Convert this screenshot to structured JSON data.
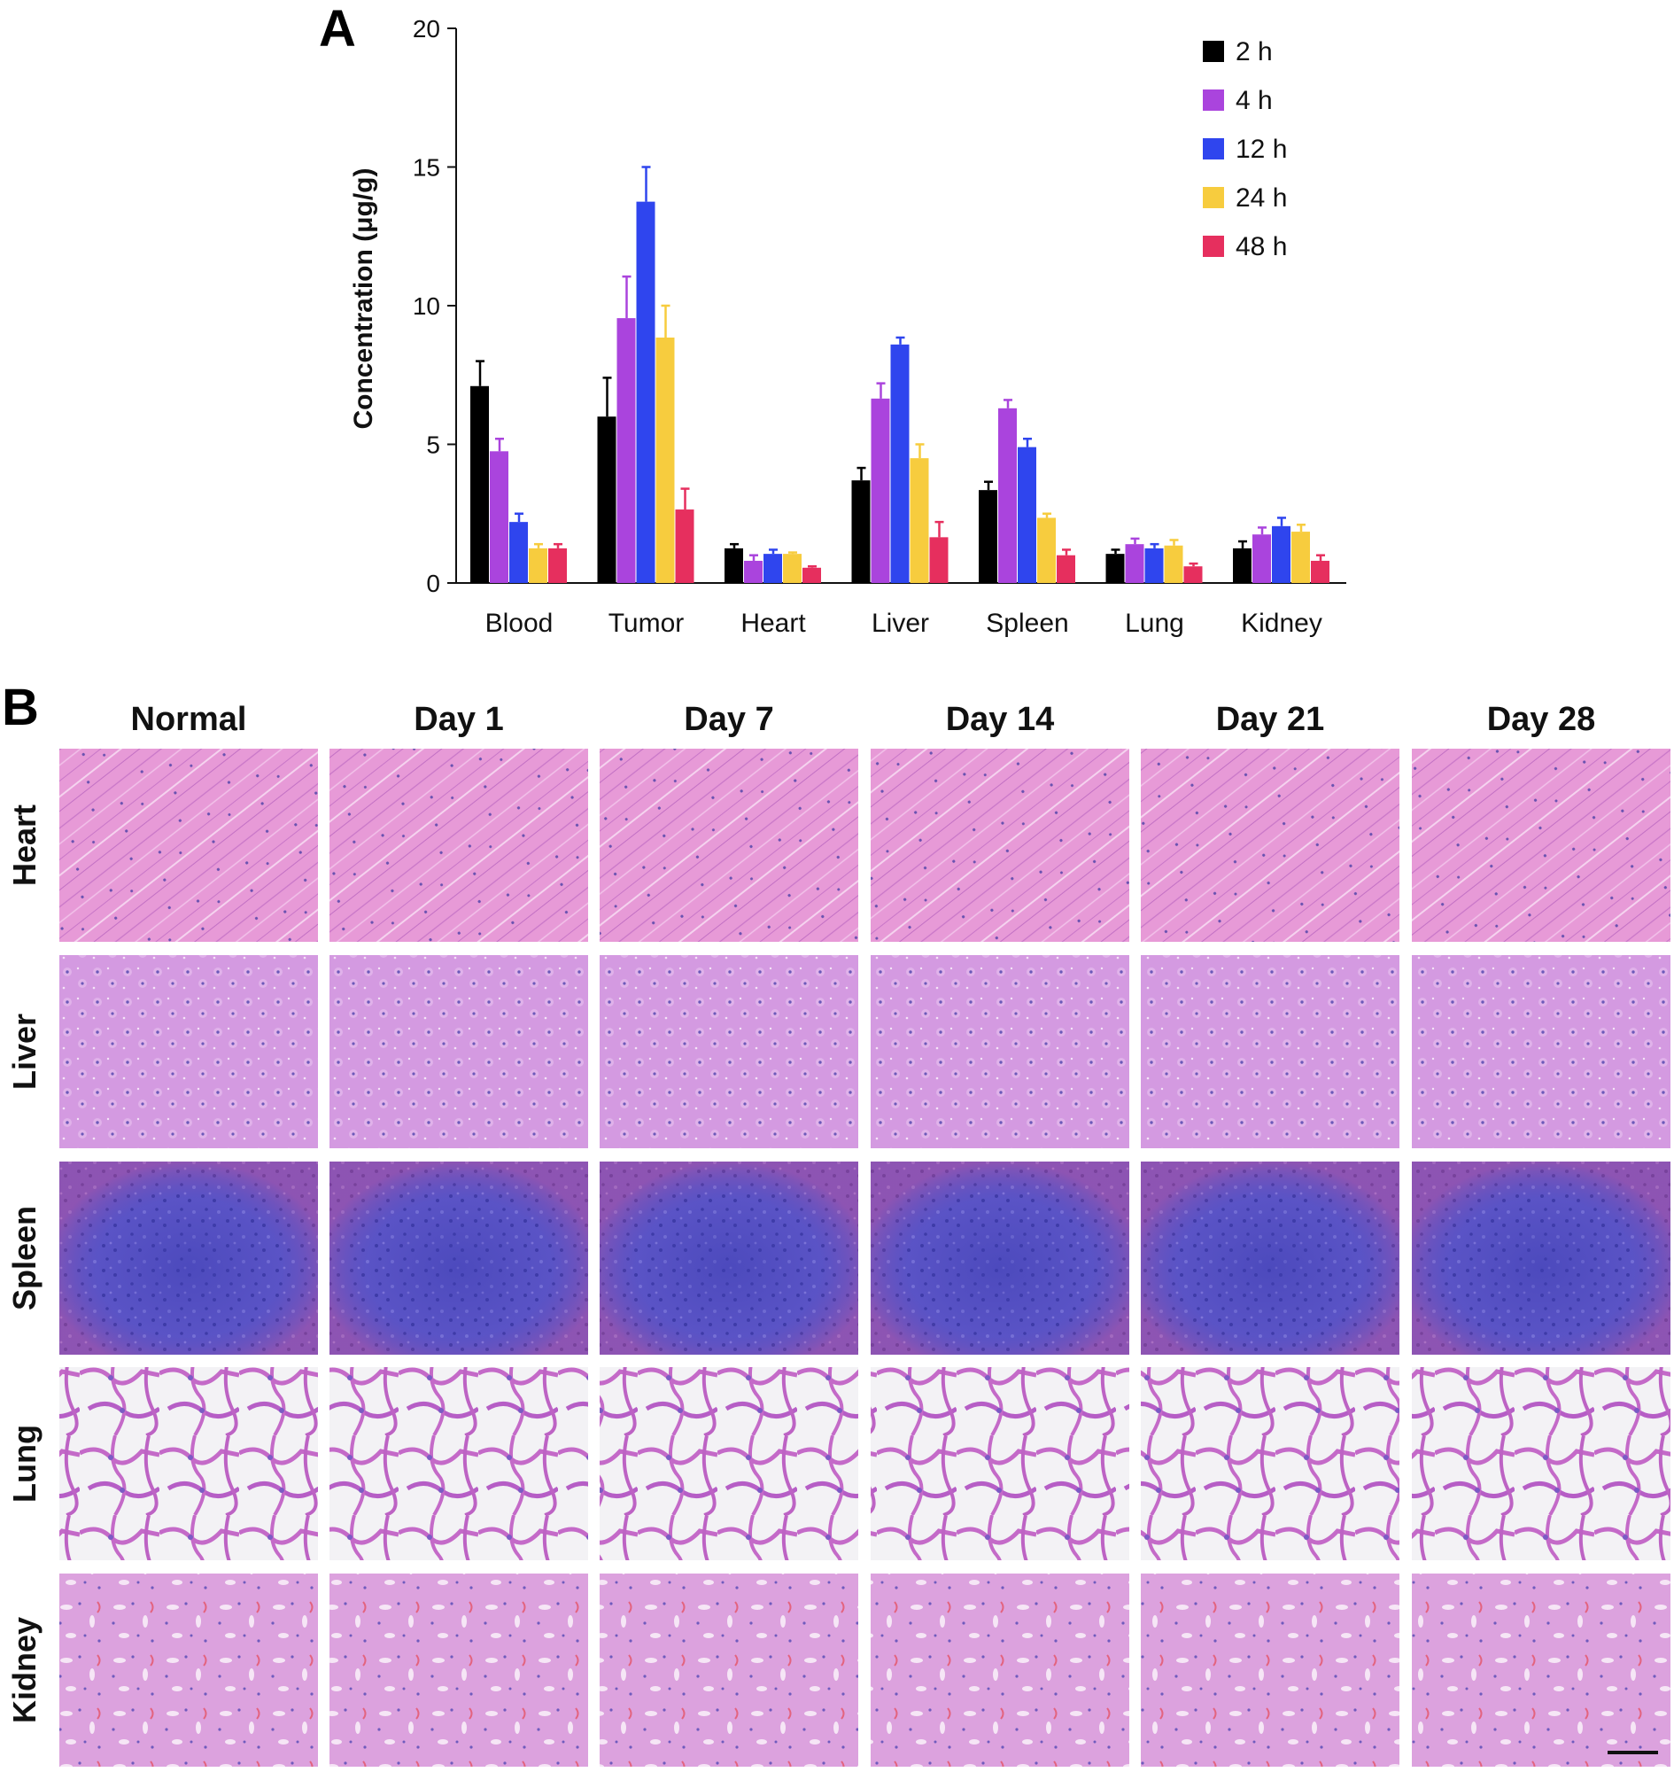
{
  "panel_a_label": "A",
  "panel_b_label": "B",
  "chart_data": {
    "type": "bar",
    "title": "",
    "xlabel": "",
    "ylabel": "Concentration (μg/g)",
    "ylim": [
      0,
      20
    ],
    "yticks": [
      0,
      5,
      10,
      15,
      20
    ],
    "categories": [
      "Blood",
      "Tumor",
      "Heart",
      "Liver",
      "Spleen",
      "Lung",
      "Kidney"
    ],
    "legend_position": "top-right",
    "grid": false,
    "series": [
      {
        "name": "2 h",
        "color": "#000000",
        "values": [
          7.1,
          6.0,
          1.25,
          3.7,
          3.35,
          1.05,
          1.25
        ],
        "errors": [
          0.9,
          1.4,
          0.15,
          0.45,
          0.3,
          0.15,
          0.25
        ]
      },
      {
        "name": "4 h",
        "color": "#aa44dd",
        "values": [
          4.75,
          9.55,
          0.8,
          6.65,
          6.3,
          1.4,
          1.75
        ],
        "errors": [
          0.45,
          1.5,
          0.2,
          0.55,
          0.3,
          0.2,
          0.25
        ]
      },
      {
        "name": "12 h",
        "color": "#2f45ee",
        "values": [
          2.2,
          13.75,
          1.05,
          8.6,
          4.9,
          1.25,
          2.05
        ],
        "errors": [
          0.3,
          1.25,
          0.15,
          0.25,
          0.3,
          0.15,
          0.3
        ]
      },
      {
        "name": "24 h",
        "color": "#f7cc3e",
        "values": [
          1.25,
          8.85,
          1.05,
          4.5,
          2.35,
          1.35,
          1.85
        ],
        "errors": [
          0.15,
          1.15,
          0.05,
          0.5,
          0.15,
          0.2,
          0.25
        ]
      },
      {
        "name": "48 h",
        "color": "#e62f5e",
        "values": [
          1.25,
          2.65,
          0.55,
          1.65,
          1.0,
          0.6,
          0.8
        ],
        "errors": [
          0.15,
          0.75,
          0.05,
          0.55,
          0.2,
          0.1,
          0.2
        ]
      }
    ]
  },
  "histology": {
    "columns": [
      "Normal",
      "Day 1",
      "Day 7",
      "Day 14",
      "Day 21",
      "Day 28"
    ],
    "rows": [
      {
        "label": "Heart",
        "tissue": "heart"
      },
      {
        "label": "Liver",
        "tissue": "liver"
      },
      {
        "label": "Spleen",
        "tissue": "spleen"
      },
      {
        "label": "Lung",
        "tissue": "lung"
      },
      {
        "label": "Kidney",
        "tissue": "kidney"
      }
    ],
    "tissue_colors": {
      "heart": "#e79ad7",
      "liver": "#d49ae1",
      "spleen": "#6a61cf",
      "lung": "#f2f1f4",
      "kidney": "#dca2de"
    }
  }
}
